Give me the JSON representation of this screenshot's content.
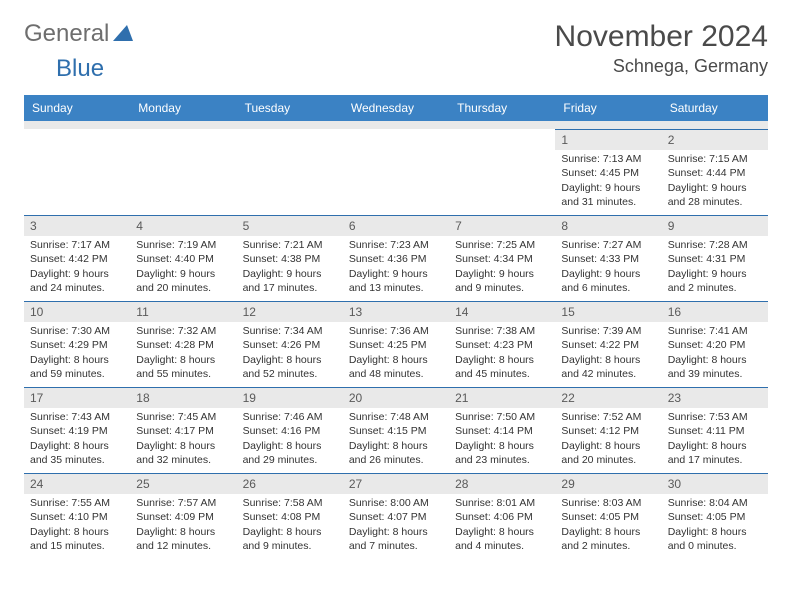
{
  "logo": {
    "general": "General",
    "blue": "Blue"
  },
  "title": "November 2024",
  "location": "Schnega, Germany",
  "columns": [
    "Sunday",
    "Monday",
    "Tuesday",
    "Wednesday",
    "Thursday",
    "Friday",
    "Saturday"
  ],
  "colors": {
    "header_bg": "#3b82c4",
    "header_text": "#ffffff",
    "daynum_bg": "#e9e9e9",
    "daynum_border": "#2f6fad",
    "body_text": "#333333",
    "logo_gray": "#6e6e6e",
    "logo_blue": "#2f6fad"
  },
  "weeks": [
    [
      null,
      null,
      null,
      null,
      null,
      {
        "n": "1",
        "sr": "Sunrise: 7:13 AM",
        "ss": "Sunset: 4:45 PM",
        "dl1": "Daylight: 9 hours",
        "dl2": "and 31 minutes."
      },
      {
        "n": "2",
        "sr": "Sunrise: 7:15 AM",
        "ss": "Sunset: 4:44 PM",
        "dl1": "Daylight: 9 hours",
        "dl2": "and 28 minutes."
      }
    ],
    [
      {
        "n": "3",
        "sr": "Sunrise: 7:17 AM",
        "ss": "Sunset: 4:42 PM",
        "dl1": "Daylight: 9 hours",
        "dl2": "and 24 minutes."
      },
      {
        "n": "4",
        "sr": "Sunrise: 7:19 AM",
        "ss": "Sunset: 4:40 PM",
        "dl1": "Daylight: 9 hours",
        "dl2": "and 20 minutes."
      },
      {
        "n": "5",
        "sr": "Sunrise: 7:21 AM",
        "ss": "Sunset: 4:38 PM",
        "dl1": "Daylight: 9 hours",
        "dl2": "and 17 minutes."
      },
      {
        "n": "6",
        "sr": "Sunrise: 7:23 AM",
        "ss": "Sunset: 4:36 PM",
        "dl1": "Daylight: 9 hours",
        "dl2": "and 13 minutes."
      },
      {
        "n": "7",
        "sr": "Sunrise: 7:25 AM",
        "ss": "Sunset: 4:34 PM",
        "dl1": "Daylight: 9 hours",
        "dl2": "and 9 minutes."
      },
      {
        "n": "8",
        "sr": "Sunrise: 7:27 AM",
        "ss": "Sunset: 4:33 PM",
        "dl1": "Daylight: 9 hours",
        "dl2": "and 6 minutes."
      },
      {
        "n": "9",
        "sr": "Sunrise: 7:28 AM",
        "ss": "Sunset: 4:31 PM",
        "dl1": "Daylight: 9 hours",
        "dl2": "and 2 minutes."
      }
    ],
    [
      {
        "n": "10",
        "sr": "Sunrise: 7:30 AM",
        "ss": "Sunset: 4:29 PM",
        "dl1": "Daylight: 8 hours",
        "dl2": "and 59 minutes."
      },
      {
        "n": "11",
        "sr": "Sunrise: 7:32 AM",
        "ss": "Sunset: 4:28 PM",
        "dl1": "Daylight: 8 hours",
        "dl2": "and 55 minutes."
      },
      {
        "n": "12",
        "sr": "Sunrise: 7:34 AM",
        "ss": "Sunset: 4:26 PM",
        "dl1": "Daylight: 8 hours",
        "dl2": "and 52 minutes."
      },
      {
        "n": "13",
        "sr": "Sunrise: 7:36 AM",
        "ss": "Sunset: 4:25 PM",
        "dl1": "Daylight: 8 hours",
        "dl2": "and 48 minutes."
      },
      {
        "n": "14",
        "sr": "Sunrise: 7:38 AM",
        "ss": "Sunset: 4:23 PM",
        "dl1": "Daylight: 8 hours",
        "dl2": "and 45 minutes."
      },
      {
        "n": "15",
        "sr": "Sunrise: 7:39 AM",
        "ss": "Sunset: 4:22 PM",
        "dl1": "Daylight: 8 hours",
        "dl2": "and 42 minutes."
      },
      {
        "n": "16",
        "sr": "Sunrise: 7:41 AM",
        "ss": "Sunset: 4:20 PM",
        "dl1": "Daylight: 8 hours",
        "dl2": "and 39 minutes."
      }
    ],
    [
      {
        "n": "17",
        "sr": "Sunrise: 7:43 AM",
        "ss": "Sunset: 4:19 PM",
        "dl1": "Daylight: 8 hours",
        "dl2": "and 35 minutes."
      },
      {
        "n": "18",
        "sr": "Sunrise: 7:45 AM",
        "ss": "Sunset: 4:17 PM",
        "dl1": "Daylight: 8 hours",
        "dl2": "and 32 minutes."
      },
      {
        "n": "19",
        "sr": "Sunrise: 7:46 AM",
        "ss": "Sunset: 4:16 PM",
        "dl1": "Daylight: 8 hours",
        "dl2": "and 29 minutes."
      },
      {
        "n": "20",
        "sr": "Sunrise: 7:48 AM",
        "ss": "Sunset: 4:15 PM",
        "dl1": "Daylight: 8 hours",
        "dl2": "and 26 minutes."
      },
      {
        "n": "21",
        "sr": "Sunrise: 7:50 AM",
        "ss": "Sunset: 4:14 PM",
        "dl1": "Daylight: 8 hours",
        "dl2": "and 23 minutes."
      },
      {
        "n": "22",
        "sr": "Sunrise: 7:52 AM",
        "ss": "Sunset: 4:12 PM",
        "dl1": "Daylight: 8 hours",
        "dl2": "and 20 minutes."
      },
      {
        "n": "23",
        "sr": "Sunrise: 7:53 AM",
        "ss": "Sunset: 4:11 PM",
        "dl1": "Daylight: 8 hours",
        "dl2": "and 17 minutes."
      }
    ],
    [
      {
        "n": "24",
        "sr": "Sunrise: 7:55 AM",
        "ss": "Sunset: 4:10 PM",
        "dl1": "Daylight: 8 hours",
        "dl2": "and 15 minutes."
      },
      {
        "n": "25",
        "sr": "Sunrise: 7:57 AM",
        "ss": "Sunset: 4:09 PM",
        "dl1": "Daylight: 8 hours",
        "dl2": "and 12 minutes."
      },
      {
        "n": "26",
        "sr": "Sunrise: 7:58 AM",
        "ss": "Sunset: 4:08 PM",
        "dl1": "Daylight: 8 hours",
        "dl2": "and 9 minutes."
      },
      {
        "n": "27",
        "sr": "Sunrise: 8:00 AM",
        "ss": "Sunset: 4:07 PM",
        "dl1": "Daylight: 8 hours",
        "dl2": "and 7 minutes."
      },
      {
        "n": "28",
        "sr": "Sunrise: 8:01 AM",
        "ss": "Sunset: 4:06 PM",
        "dl1": "Daylight: 8 hours",
        "dl2": "and 4 minutes."
      },
      {
        "n": "29",
        "sr": "Sunrise: 8:03 AM",
        "ss": "Sunset: 4:05 PM",
        "dl1": "Daylight: 8 hours",
        "dl2": "and 2 minutes."
      },
      {
        "n": "30",
        "sr": "Sunrise: 8:04 AM",
        "ss": "Sunset: 4:05 PM",
        "dl1": "Daylight: 8 hours",
        "dl2": "and 0 minutes."
      }
    ]
  ]
}
